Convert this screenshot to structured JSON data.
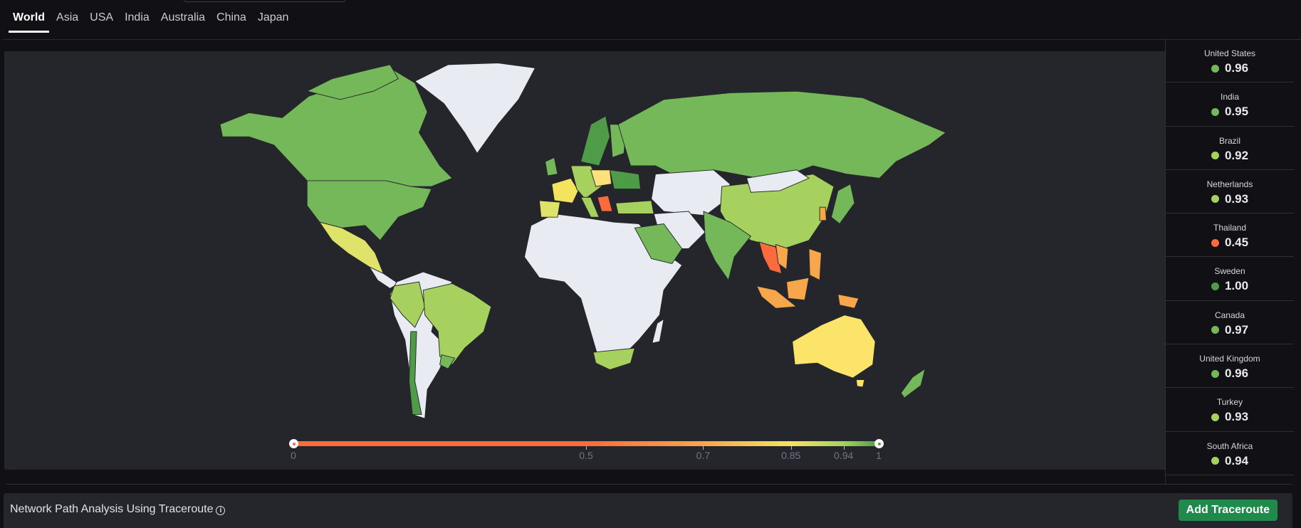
{
  "tabs": [
    {
      "label": "World",
      "active": true
    },
    {
      "label": "Asia"
    },
    {
      "label": "USA"
    },
    {
      "label": "India"
    },
    {
      "label": "Australia"
    },
    {
      "label": "China"
    },
    {
      "label": "Japan"
    }
  ],
  "colors": {
    "no_data": "#e8ecf2",
    "very_high": "#4f9c48",
    "high": "#74b85a",
    "good": "#a6d15e",
    "medium": "#f4e35e",
    "low": "#f7a64a",
    "very_low": "#fd6a3e",
    "accent_button": "#1f8a4c"
  },
  "sidebar": {
    "items": [
      {
        "country": "United States",
        "value": "0.96",
        "color": "#74b85a"
      },
      {
        "country": "India",
        "value": "0.95",
        "color": "#74b85a"
      },
      {
        "country": "Brazil",
        "value": "0.92",
        "color": "#a6d15e"
      },
      {
        "country": "Netherlands",
        "value": "0.93",
        "color": "#a6d15e"
      },
      {
        "country": "Thailand",
        "value": "0.45",
        "color": "#fd6a3e"
      },
      {
        "country": "Sweden",
        "value": "1.00",
        "color": "#4f9c48"
      },
      {
        "country": "Canada",
        "value": "0.97",
        "color": "#74b85a"
      },
      {
        "country": "United Kingdom",
        "value": "0.96",
        "color": "#74b85a"
      },
      {
        "country": "Turkey",
        "value": "0.93",
        "color": "#a6d15e"
      },
      {
        "country": "South Africa",
        "value": "0.94",
        "color": "#a6d15e"
      }
    ]
  },
  "legend": {
    "min": 0,
    "max": 1,
    "ticks": [
      {
        "value": 0,
        "label": "0"
      },
      {
        "value": 0.5,
        "label": "0.5"
      },
      {
        "value": 0.7,
        "label": "0.7"
      },
      {
        "value": 0.85,
        "label": "0.85"
      },
      {
        "value": 0.94,
        "label": "0.94"
      },
      {
        "value": 1,
        "label": "1"
      }
    ]
  },
  "bottom": {
    "title": "Network Path Analysis Using Traceroute",
    "info_icon": "i",
    "add_button": "Add Traceroute"
  }
}
